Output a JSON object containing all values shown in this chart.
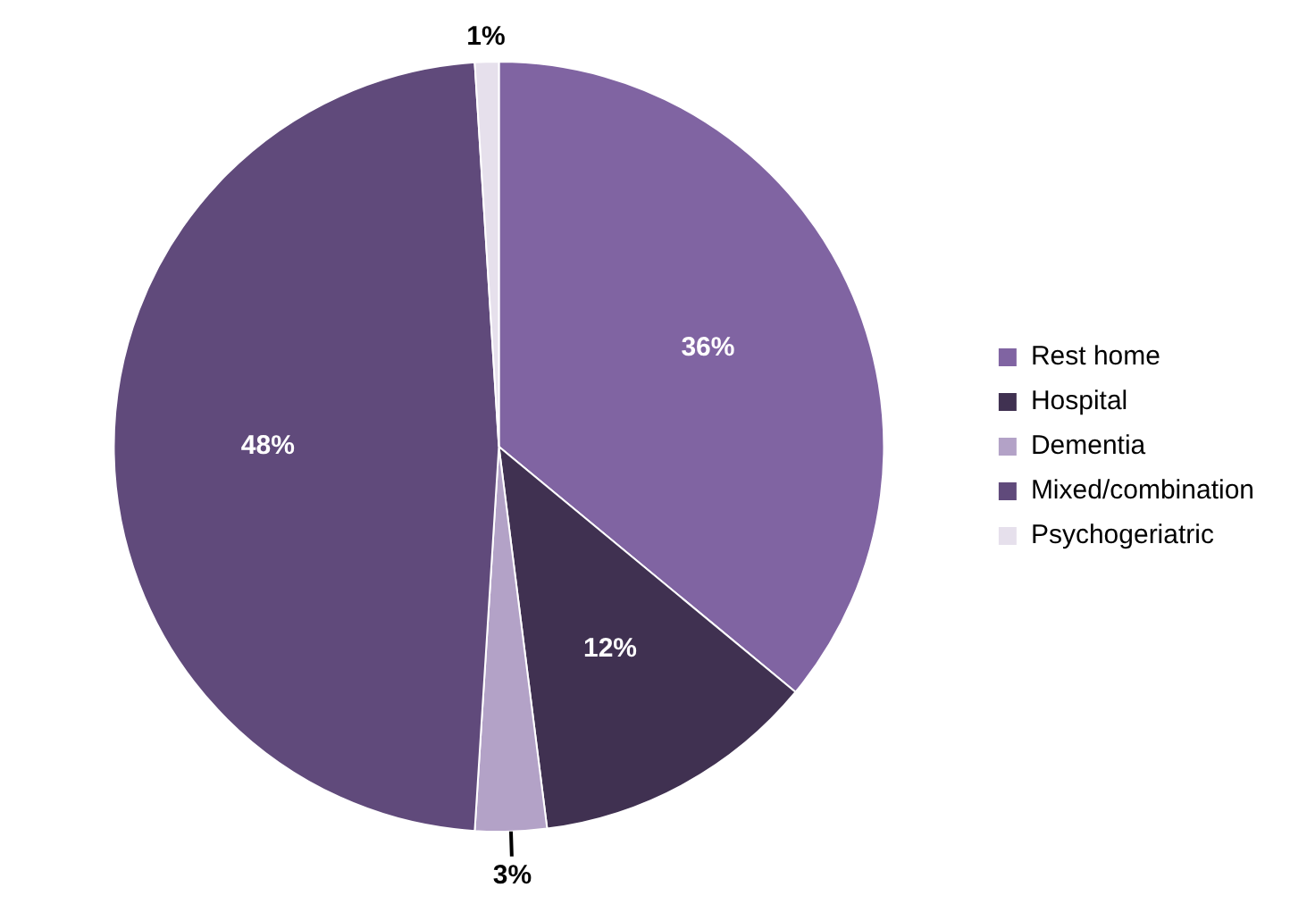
{
  "chart_data": {
    "type": "pie",
    "categories": [
      "Rest home",
      "Hospital",
      "Dementia",
      "Mixed/combination",
      "Psychogeriatric"
    ],
    "values": [
      36,
      12,
      3,
      48,
      1
    ],
    "colors": [
      "#8064a2",
      "#403151",
      "#b3a2c7",
      "#604a7b",
      "#e6e0ec"
    ],
    "value_labels": [
      "36%",
      "12%",
      "3%",
      "48%",
      "1%"
    ],
    "legend": "right"
  }
}
